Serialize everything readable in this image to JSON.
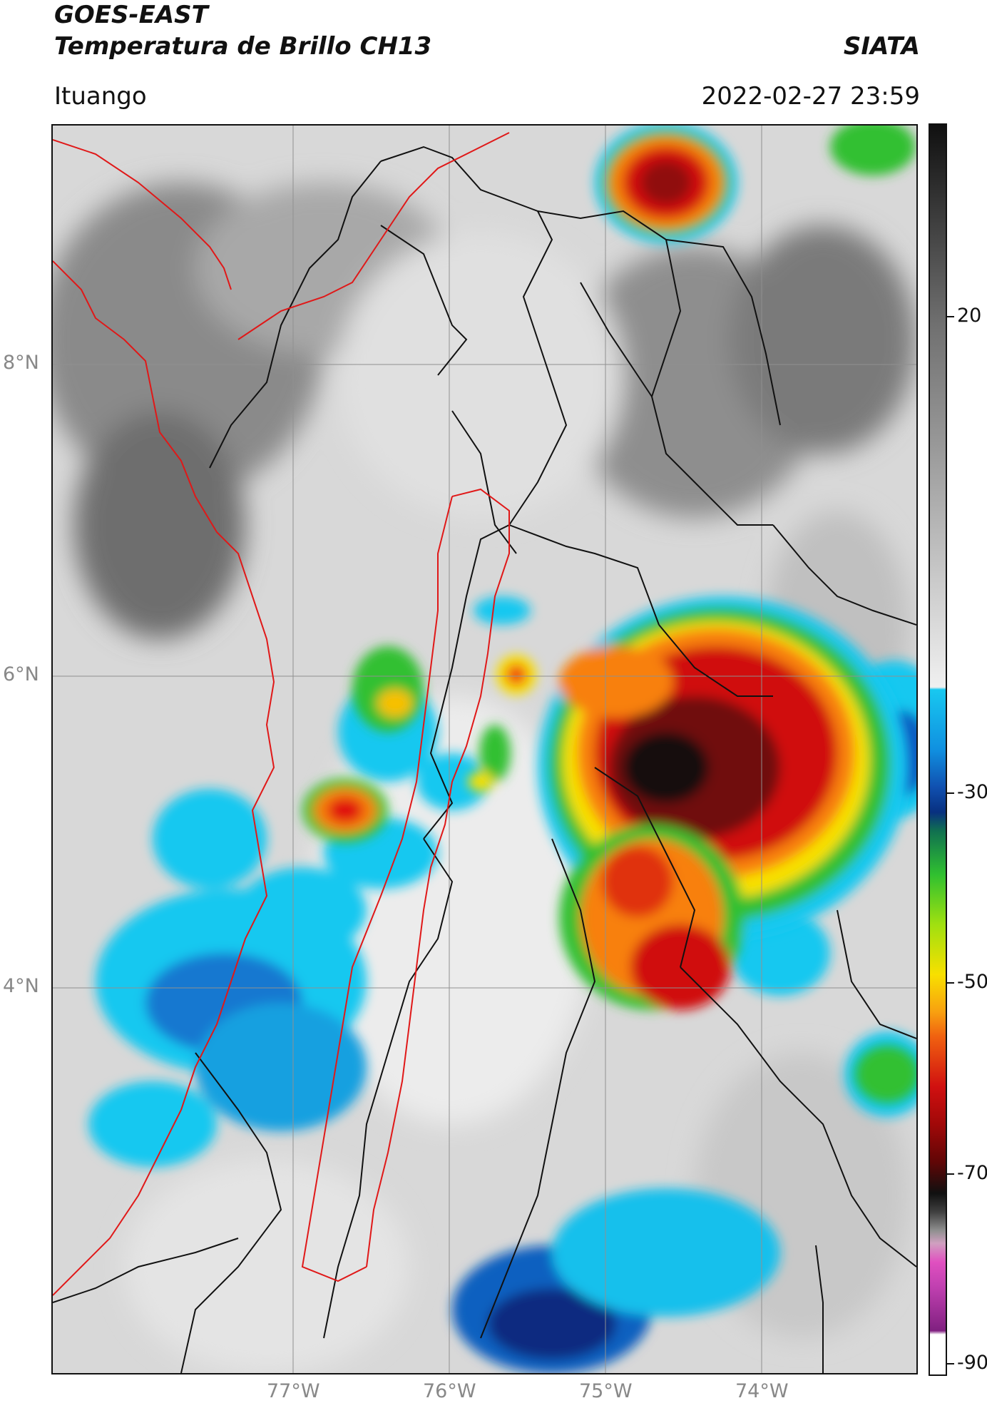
{
  "header": {
    "title_line1": "GOES-EAST",
    "title_line2": "Temperatura de Brillo CH13",
    "organization": "SIATA",
    "location": "Ituango",
    "timestamp": "2022-02-27 23:59"
  },
  "map": {
    "lat_labels": [
      "8°N",
      "6°N",
      "4°N"
    ],
    "lon_labels": [
      "77°W",
      "76°W",
      "75°W",
      "74°W"
    ]
  },
  "colorbar": {
    "tick_labels": [
      "20",
      "-30",
      "-50",
      "-70",
      "-90"
    ],
    "colors": {
      "warm_gray": "#707070",
      "light_gray": "#e8e8e8",
      "cyan": "#18c8f0",
      "blue": "#1050b0",
      "green": "#30c030",
      "yellow": "#f8e000",
      "orange": "#f88010",
      "red": "#d01010",
      "dark_red": "#700808",
      "black": "#101010",
      "magenta": "#e050c0"
    }
  }
}
